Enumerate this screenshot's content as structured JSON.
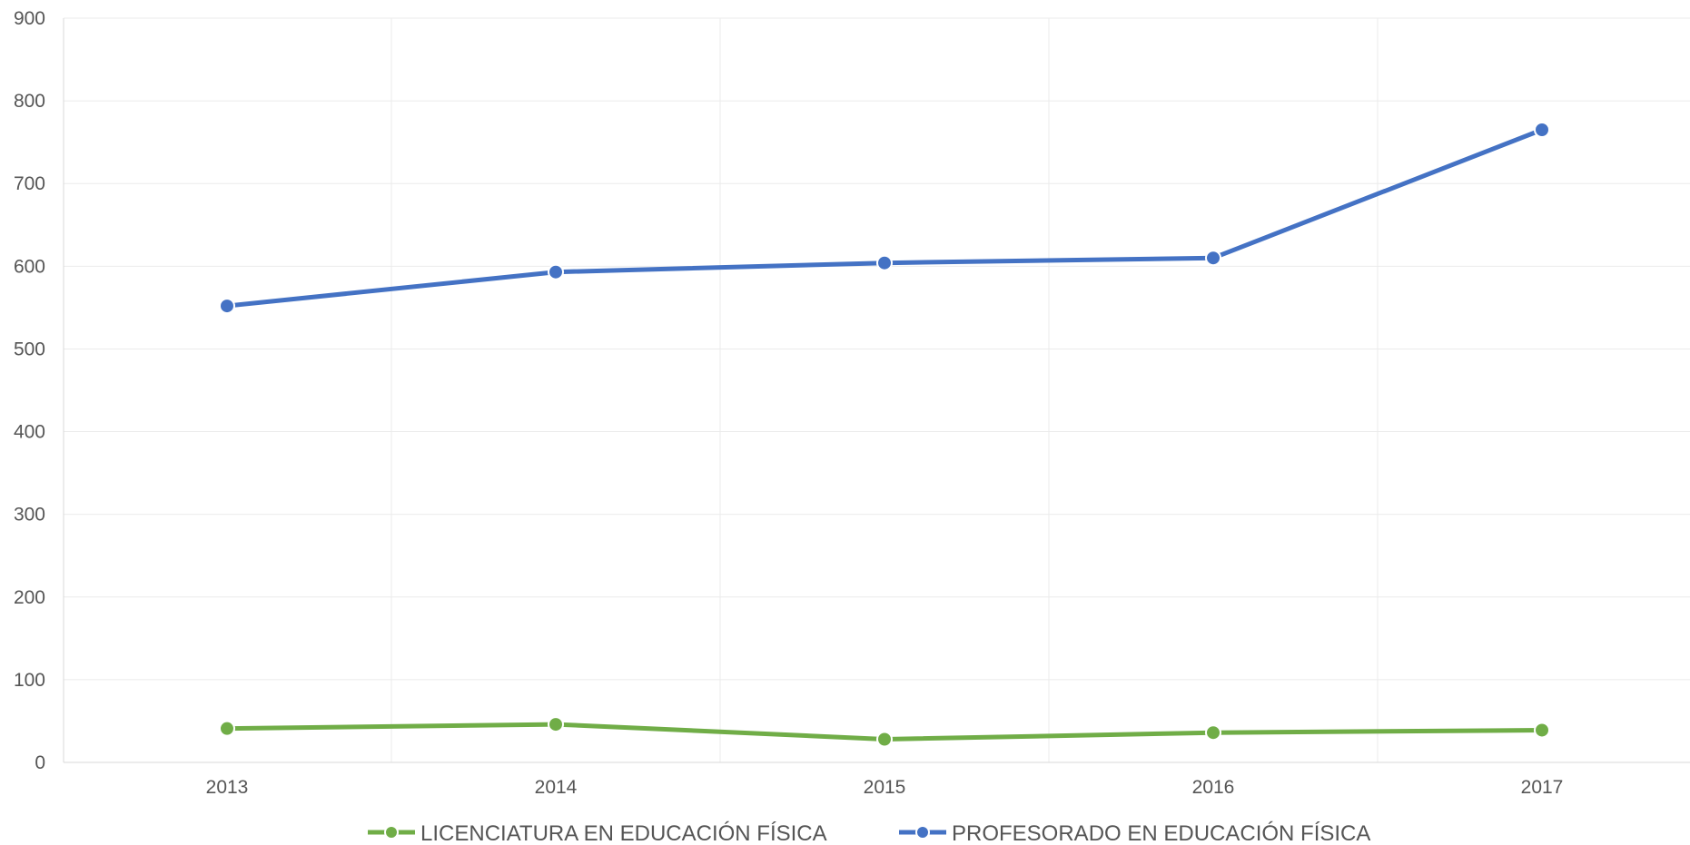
{
  "chart_data": {
    "type": "line",
    "title": "",
    "xlabel": "",
    "ylabel": "",
    "categories": [
      "2013",
      "2014",
      "2015",
      "2016",
      "2017"
    ],
    "yticks": [
      "0",
      "100",
      "200",
      "300",
      "400",
      "500",
      "600",
      "700",
      "800",
      "900"
    ],
    "ylim": [
      0,
      900
    ],
    "grid": true,
    "legend_position": "bottom-center",
    "series": [
      {
        "name": "LICENCIATURA EN EDUCACIÓN FÍSICA",
        "color": "#70ad47",
        "values": [
          41,
          46,
          28,
          36,
          39
        ]
      },
      {
        "name": "PROFESORADO EN EDUCACIÓN FÍSICA",
        "color": "#4472c4",
        "values": [
          552,
          593,
          604,
          610,
          765
        ]
      }
    ]
  }
}
